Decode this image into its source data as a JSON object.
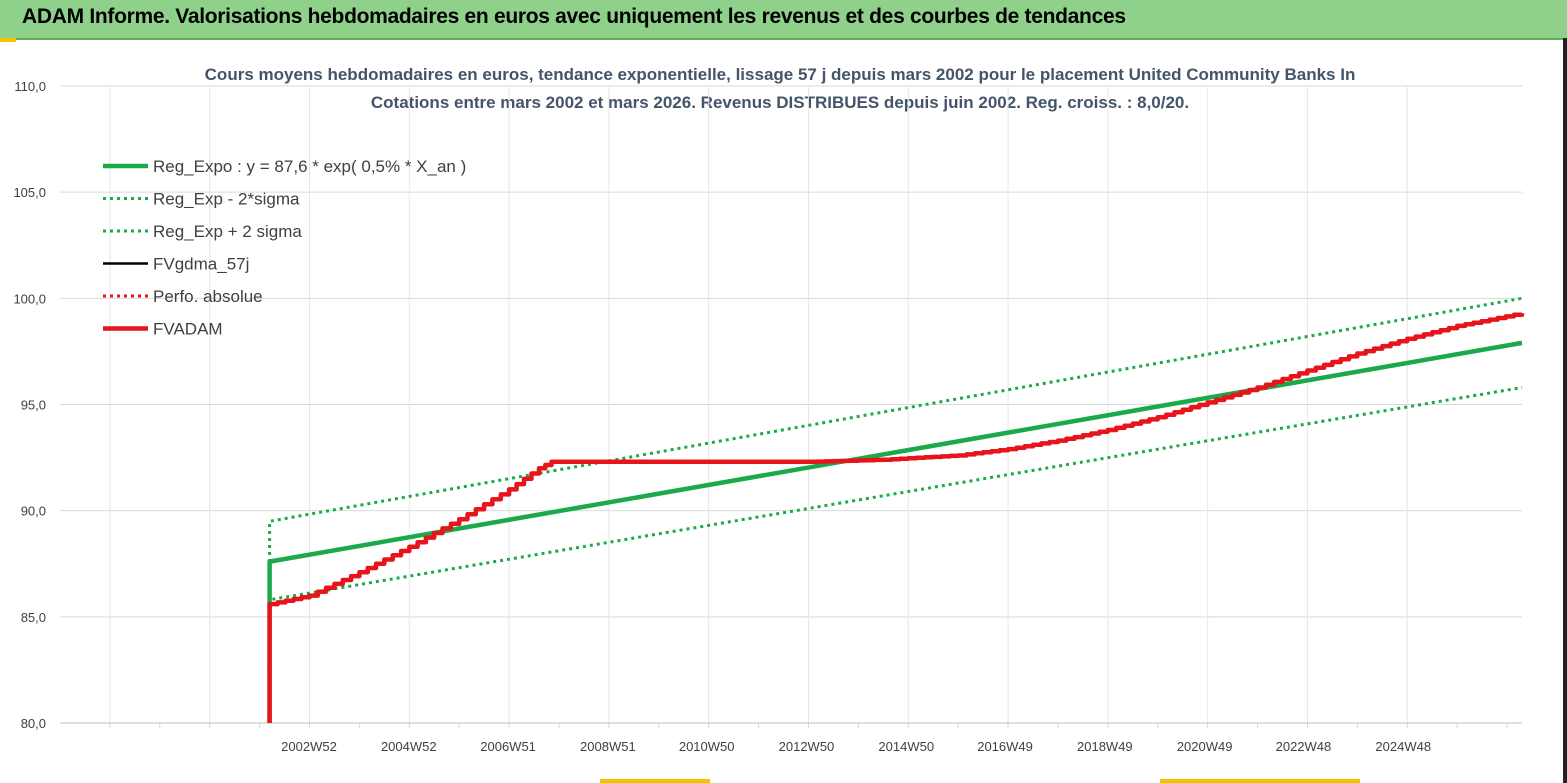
{
  "header": {
    "title": "ADAM Informe. Valorisations hebdomadaires en euros avec uniquement les revenus et des courbes de tendances",
    "background": "#8fd18a"
  },
  "chart_data": {
    "type": "line",
    "title_line1": "Cours moyens hebdomadaires en euros, tendance exponentielle, lissage 57 j depuis mars 2002 pour le placement United Community Banks In",
    "title_line2": "Cotations entre mars 2002 et mars 2026. Revenus DISTRIBUES depuis juin 2002. Reg. croiss. : 8,0/20.",
    "ylim": [
      80,
      110
    ],
    "yticks": [
      "80,0",
      "85,0",
      "90,0",
      "95,0",
      "100,0",
      "105,0",
      "110,0"
    ],
    "xlim": [
      1998.0,
      2027.3
    ],
    "xticks": [
      {
        "label": "2002W52",
        "x": 2002.99
      },
      {
        "label": "2004W52",
        "x": 2004.99
      },
      {
        "label": "2006W51",
        "x": 2006.98
      },
      {
        "label": "2008W51",
        "x": 2008.98
      },
      {
        "label": "2010W50",
        "x": 2010.96
      },
      {
        "label": "2012W50",
        "x": 2012.96
      },
      {
        "label": "2014W50",
        "x": 2014.96
      },
      {
        "label": "2016W49",
        "x": 2016.94
      },
      {
        "label": "2018W49",
        "x": 2018.94
      },
      {
        "label": "2020W49",
        "x": 2020.94
      },
      {
        "label": "2022W48",
        "x": 2022.92
      },
      {
        "label": "2024W48",
        "x": 2024.92
      }
    ],
    "grid": true,
    "legend_position": "top-left",
    "series": [
      {
        "name": "Reg_Expo : y = 87,6 * exp( 0,5% *  X_an )",
        "color": "#1aaa4a",
        "style": "solid-thick",
        "points": [
          [
            2002.2,
            80.0
          ],
          [
            2002.2,
            87.6
          ],
          [
            2027.3,
            97.9
          ]
        ]
      },
      {
        "name": "Reg_Exp - 2*sigma",
        "color": "#1aaa4a",
        "style": "dotted",
        "points": [
          [
            2002.2,
            80.0
          ],
          [
            2002.2,
            85.8
          ],
          [
            2027.3,
            95.8
          ]
        ]
      },
      {
        "name": "Reg_Exp + 2 sigma",
        "color": "#1aaa4a",
        "style": "dotted",
        "points": [
          [
            2002.2,
            80.0
          ],
          [
            2002.2,
            89.5
          ],
          [
            2027.3,
            100.0
          ]
        ]
      },
      {
        "name": "FVgdma_57j",
        "color": "#000000",
        "style": "solid",
        "points": []
      },
      {
        "name": "Perfo. absolue",
        "color": "#e8141b",
        "style": "dotted",
        "points": []
      },
      {
        "name": "FVADAM",
        "color": "#e8141b",
        "style": "solid-thick",
        "points": [
          [
            2002.2,
            80.0
          ],
          [
            2002.2,
            85.6
          ],
          [
            2003.0,
            86.0
          ],
          [
            2004.0,
            87.1
          ],
          [
            2005.0,
            88.3
          ],
          [
            2006.0,
            89.6
          ],
          [
            2007.0,
            91.0
          ],
          [
            2007.6,
            92.0
          ],
          [
            2007.85,
            92.3
          ],
          [
            2013.0,
            92.3
          ],
          [
            2014.5,
            92.4
          ],
          [
            2016.0,
            92.6
          ],
          [
            2017.0,
            92.9
          ],
          [
            2018.0,
            93.3
          ],
          [
            2019.0,
            93.8
          ],
          [
            2020.0,
            94.4
          ],
          [
            2021.0,
            95.1
          ],
          [
            2022.0,
            95.8
          ],
          [
            2023.0,
            96.6
          ],
          [
            2024.0,
            97.4
          ],
          [
            2025.0,
            98.1
          ],
          [
            2026.0,
            98.7
          ],
          [
            2027.3,
            99.3
          ]
        ]
      }
    ]
  }
}
